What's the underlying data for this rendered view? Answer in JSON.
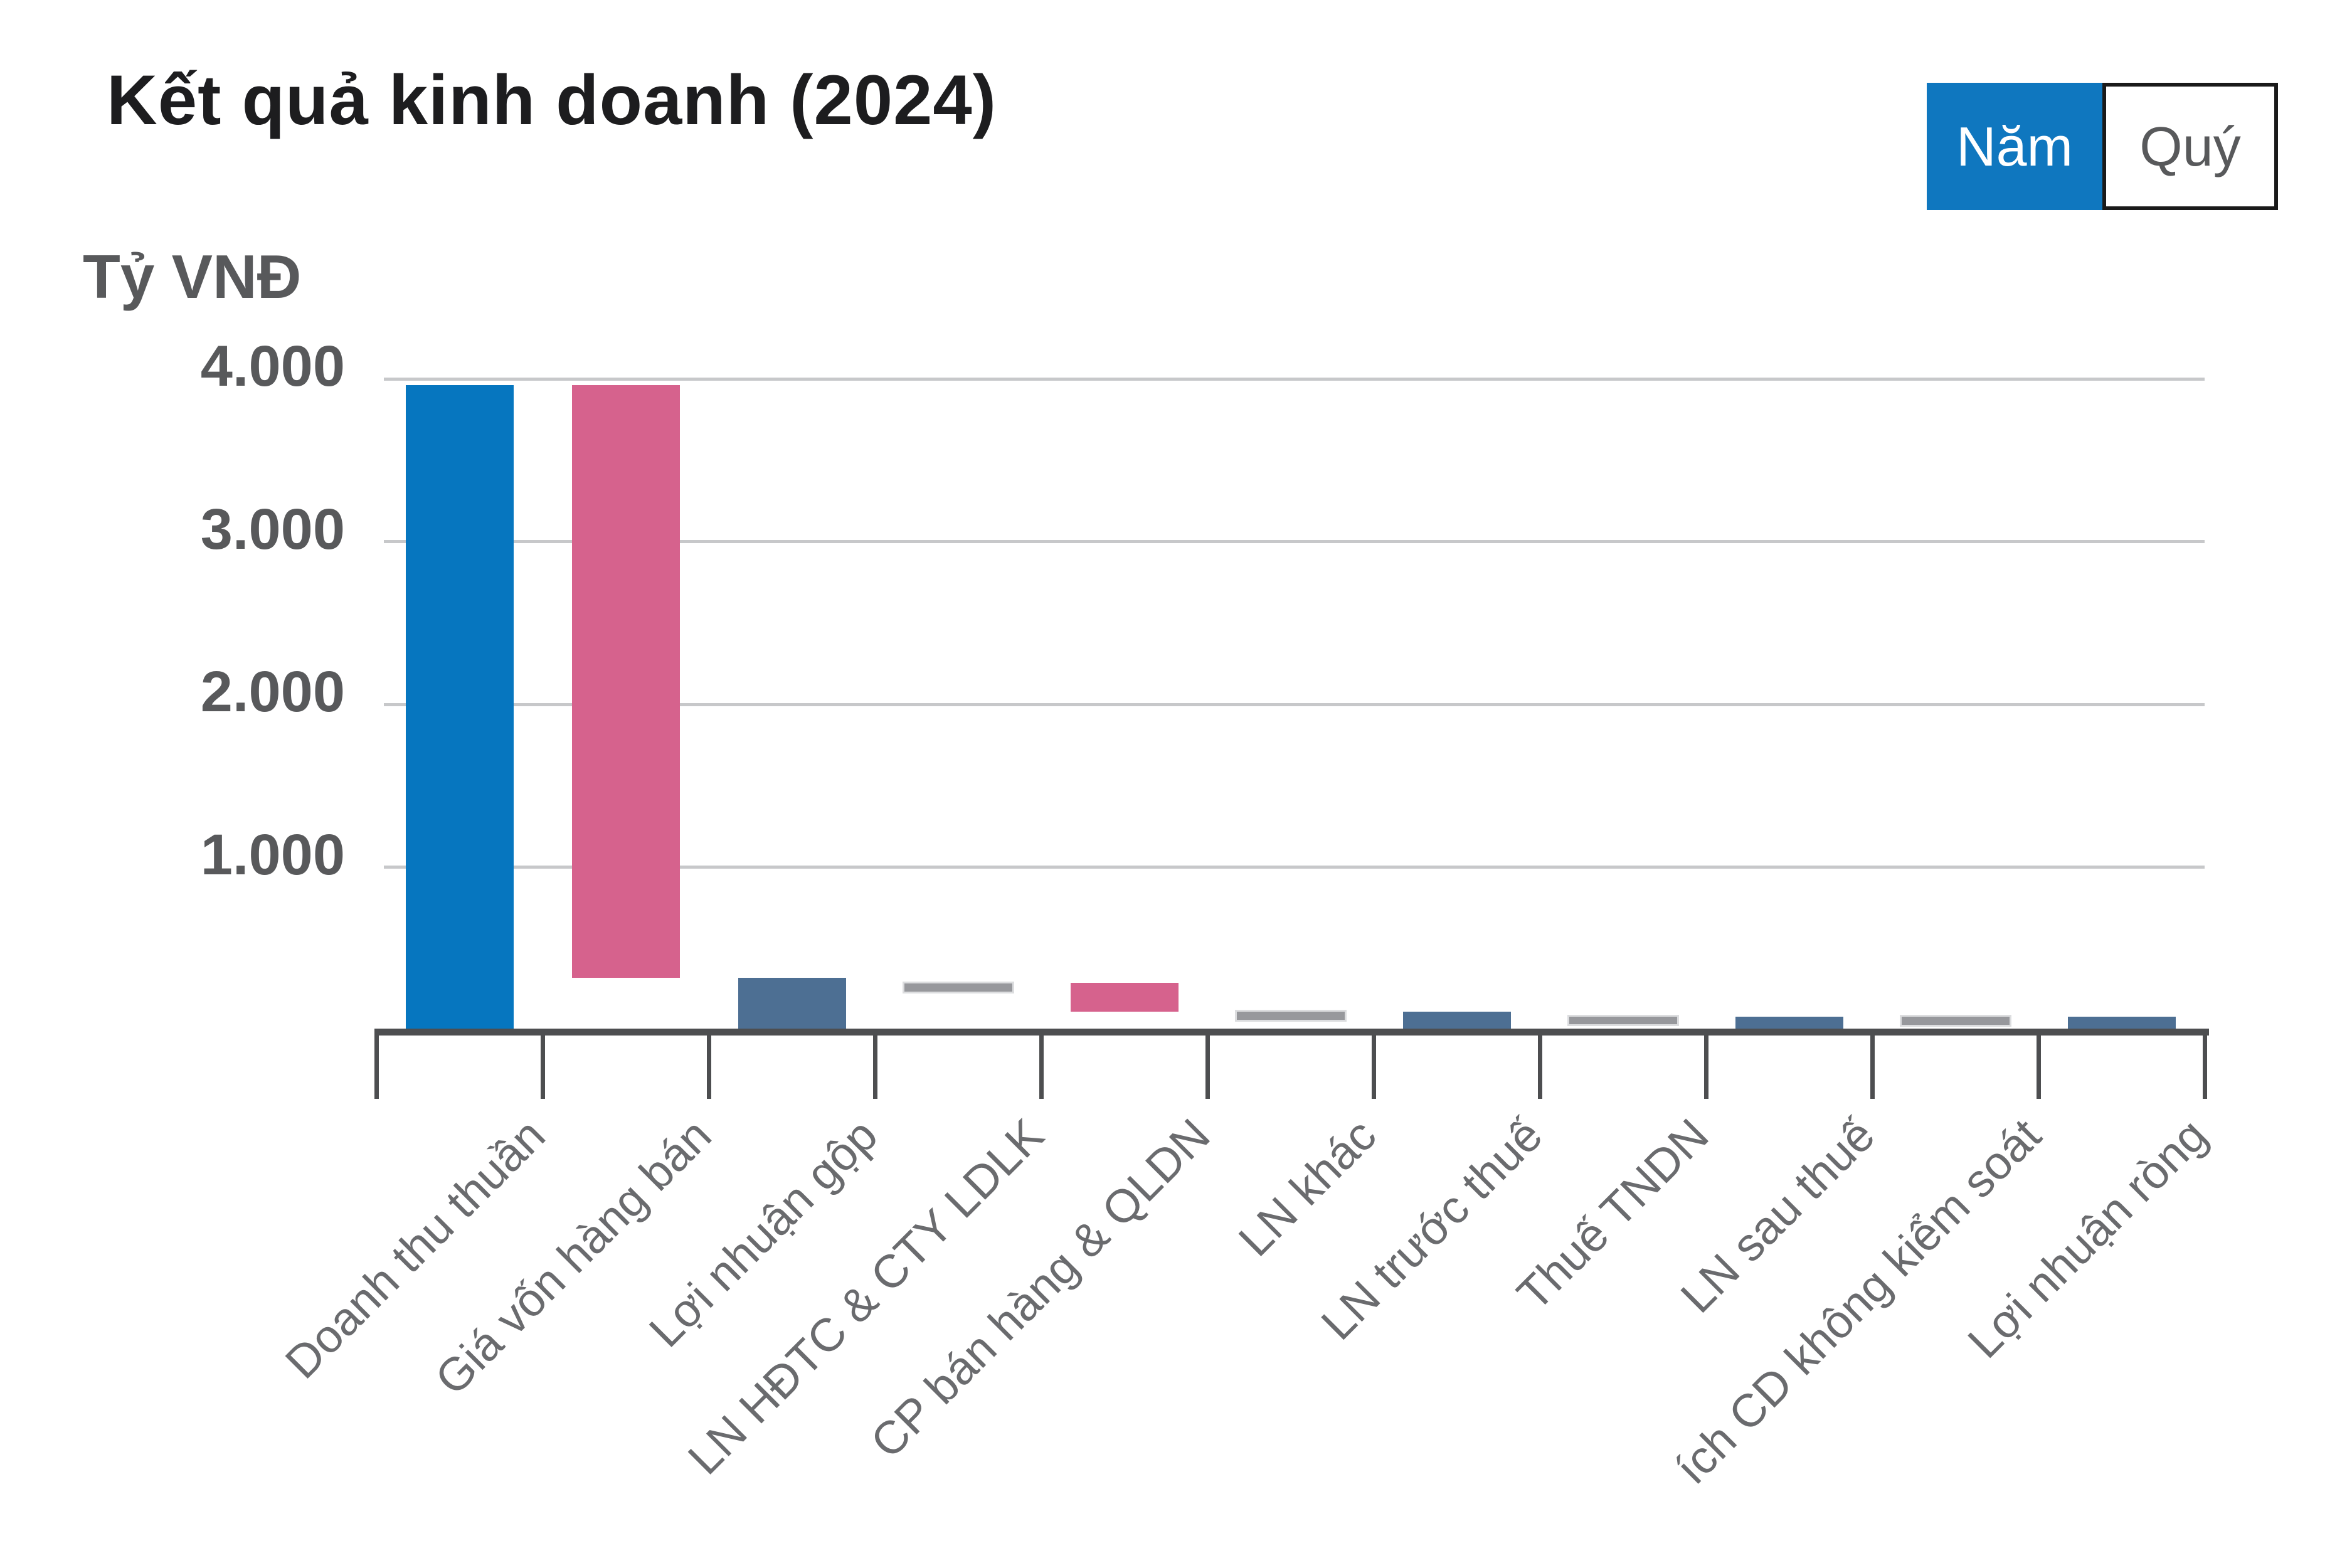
{
  "header": {
    "title": "Kết quả kinh doanh (2024)"
  },
  "toggle": {
    "year_label": "Năm",
    "quarter_label": "Quý",
    "selected": "Năm"
  },
  "chart_data": {
    "type": "bar",
    "subtype": "waterfall",
    "title": "Kết quả kinh doanh (2024)",
    "ylabel": "Tỷ VNĐ",
    "xlabel": "",
    "ylim": [
      0,
      4200
    ],
    "grid": true,
    "legend_position": "none",
    "y_ticks": [
      {
        "label": "1.000",
        "value": 1000
      },
      {
        "label": "2.000",
        "value": 2000
      },
      {
        "label": "3.000",
        "value": 3000
      },
      {
        "label": "4.000",
        "value": 4000
      }
    ],
    "categories": [
      "Doanh thu thuần",
      "Giá vốn hàng bán",
      "Lợi nhuận gộp",
      "LN HĐTC & CTY LDLK",
      "CP bán hàng & QLDN",
      "LN khác",
      "LN trước thuế",
      "Thuế TNDN",
      "LN sau thuế",
      "ích CD không kiểm soát",
      "Lợi nhuận ròng"
    ],
    "bars": [
      {
        "category": "Doanh thu thuần",
        "from": 0,
        "to": 3960,
        "value": 3960,
        "color": "blue"
      },
      {
        "category": "Giá vốn hàng bán",
        "from": 320,
        "to": 3960,
        "value": -3640,
        "color": "pink"
      },
      {
        "category": "Lợi nhuận gộp",
        "from": 0,
        "to": 320,
        "value": 320,
        "color": "slate"
      },
      {
        "category": "LN HĐTC & CTY LDLK",
        "from": 235,
        "to": 285,
        "value": -50,
        "color": "gray"
      },
      {
        "category": "CP bán hàng & QLDN",
        "from": 110,
        "to": 290,
        "value": -180,
        "color": "pink"
      },
      {
        "category": "LN khác",
        "from": 60,
        "to": 110,
        "value": 50,
        "color": "gray"
      },
      {
        "category": "LN trước thuế",
        "from": 0,
        "to": 110,
        "value": 110,
        "color": "slate"
      },
      {
        "category": "Thuế TNDN",
        "from": 35,
        "to": 80,
        "value": -45,
        "color": "gray"
      },
      {
        "category": "LN sau thuế",
        "from": 0,
        "to": 80,
        "value": 80,
        "color": "slate"
      },
      {
        "category": "ích CD không kiểm soát",
        "from": 30,
        "to": 80,
        "value": -50,
        "color": "gray"
      },
      {
        "category": "Lợi nhuận ròng",
        "from": 0,
        "to": 80,
        "value": 80,
        "color": "slate"
      }
    ],
    "colors": {
      "blue": "#0676bf",
      "pink": "#d6628d",
      "slate": "#4d6f93",
      "gray": "#97989c",
      "grid": "#c7c8ca",
      "axis": "#4d4e50",
      "tick_text": "#58595b",
      "x_label_text": "#6a6b6e",
      "title_text": "#1d1d1f",
      "toggle_active_bg": "#0f77bf"
    }
  }
}
